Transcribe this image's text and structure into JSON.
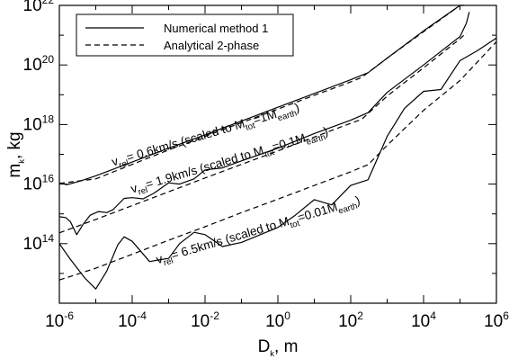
{
  "chart_data": {
    "type": "line",
    "xlabel": {
      "main": "D",
      "sub": "k",
      "rest": ", m"
    },
    "ylabel": {
      "main": "m",
      "sub": "k",
      "rest": ", kg"
    },
    "x_scale": "log",
    "y_scale": "log",
    "xlim": [
      1e-06,
      1000000.0
    ],
    "ylim": [
      1000000000000.0,
      1e+22
    ],
    "x_ticks": [
      {
        "base": "10",
        "exp": "-6",
        "value": 1e-06
      },
      {
        "base": "10",
        "exp": "-4",
        "value": 0.0001
      },
      {
        "base": "10",
        "exp": "-2",
        "value": 0.01
      },
      {
        "base": "10",
        "exp": "0",
        "value": 1
      },
      {
        "base": "10",
        "exp": "2",
        "value": 100.0
      },
      {
        "base": "10",
        "exp": "4",
        "value": 10000.0
      },
      {
        "base": "10",
        "exp": "6",
        "value": 1000000.0
      }
    ],
    "y_ticks": [
      {
        "base": "10",
        "exp": "14",
        "value": 100000000000000.0
      },
      {
        "base": "10",
        "exp": "16",
        "value": 1e+16
      },
      {
        "base": "10",
        "exp": "18",
        "value": 1e+18
      },
      {
        "base": "10",
        "exp": "20",
        "value": 1e+20
      },
      {
        "base": "10",
        "exp": "22",
        "value": 1e+22
      }
    ],
    "legend": {
      "placement": "top-left",
      "entries": [
        {
          "label": "Numerical method 1",
          "style": "solid"
        },
        {
          "label": "Analytical 2-phase",
          "style": "dashed"
        }
      ]
    },
    "series": [
      {
        "case": "0.6km/s",
        "style": "solid",
        "points": [
          [
            1e-06,
            1.1e+16
          ],
          [
            1.6e-06,
            9500000000000000.0
          ],
          [
            2.5e-06,
            1.1e+16
          ],
          [
            4e-06,
            1.3e+16
          ],
          [
            1e-05,
            1.9e+16
          ],
          [
            0.0001,
            5.5e+16
          ],
          [
            0.001,
            1.6e+17
          ],
          [
            0.01,
            4.5e+17
          ],
          [
            0.1,
            1.3e+18
          ],
          [
            1,
            3.8e+18
          ],
          [
            10,
            1.1e+19
          ],
          [
            100,
            3.2e+19
          ],
          [
            300,
            5.5e+19
          ],
          [
            1000,
            1.7e+20
          ],
          [
            10000.0,
            1.4e+21
          ],
          [
            100000.0,
            1.2e+22
          ],
          [
            130000.0,
            2.5e+22
          ]
        ]
      },
      {
        "case": "0.6km/s",
        "style": "dashed",
        "points": [
          [
            1e-06,
            1.05e+16
          ],
          [
            1e-05,
            1.5e+16
          ],
          [
            0.0001,
            4.6e+16
          ],
          [
            0.001,
            1.4e+17
          ],
          [
            0.01,
            4e+17
          ],
          [
            0.1,
            1.15e+18
          ],
          [
            1,
            3.3e+18
          ],
          [
            10,
            9.5e+18
          ],
          [
            100,
            2.7e+19
          ],
          [
            200,
            3.8e+19
          ],
          [
            1000.0,
            1.7e+20
          ],
          [
            10000.0,
            1.3e+21
          ],
          [
            100000.0,
            1.1e+22
          ]
        ]
      },
      {
        "case": "1.9km/s",
        "style": "solid",
        "points": [
          [
            1e-06,
            800000000000000.0
          ],
          [
            1.5e-06,
            750000000000000.0
          ],
          [
            2e-06,
            550000000000000.0
          ],
          [
            3e-06,
            200000000000000.0
          ],
          [
            4.5e-06,
            450000000000000.0
          ],
          [
            7e-06,
            900000000000000.0
          ],
          [
            1.2e-05,
            1200000000000000.0
          ],
          [
            2e-05,
            1100000000000000.0
          ],
          [
            3e-05,
            1400000000000000.0
          ],
          [
            6e-05,
            3300000000000000.0
          ],
          [
            0.0001,
            3500000000000000.0
          ],
          [
            0.0002,
            3200000000000000.0
          ],
          [
            0.0004,
            5000000000000000.0
          ],
          [
            0.001,
            1.1e+16
          ],
          [
            0.002,
            1e+16
          ],
          [
            0.005,
            1.5e+16
          ],
          [
            0.01,
            3e+16
          ],
          [
            0.03,
            3.5e+16
          ],
          [
            0.1,
            6e+16
          ],
          [
            1,
            1.6e+17
          ],
          [
            10,
            5e+17
          ],
          [
            100,
            1.4e+18
          ],
          [
            300,
            2.5e+18
          ],
          [
            1000,
            1.2e+19
          ],
          [
            10000.0,
            1e+20
          ],
          [
            100000.0,
            9e+20
          ],
          [
            150000.0,
            2.5e+21
          ],
          [
            180000.0,
            6e+21
          ]
        ]
      },
      {
        "case": "1.9km/s",
        "style": "dashed",
        "points": [
          [
            1e-06,
            230000000000000.0
          ],
          [
            1e-05,
            650000000000000.0
          ],
          [
            0.0001,
            1900000000000000.0
          ],
          [
            0.001,
            5500000000000000.0
          ],
          [
            0.01,
            1.6e+16
          ],
          [
            0.1,
            4.6e+16
          ],
          [
            1,
            1.3e+17
          ],
          [
            10,
            3.8e+17
          ],
          [
            100,
            1.1e+18
          ],
          [
            200,
            1.5e+18
          ],
          [
            1000.0,
            9e+18
          ],
          [
            10000.0,
            8e+19
          ],
          [
            100000.0,
            7.5e+20
          ],
          [
            150000.0,
            1.2e+21
          ]
        ]
      },
      {
        "case": "6.5km/s",
        "style": "solid",
        "points": [
          [
            1e-06,
            100000000000000.0
          ],
          [
            2e-06,
            30000000000000.0
          ],
          [
            5e-06,
            7000000000000.0
          ],
          [
            1e-05,
            3000000000000.0
          ],
          [
            2e-05,
            12000000000000.0
          ],
          [
            4e-05,
            90000000000000.0
          ],
          [
            6e-05,
            170000000000000.0
          ],
          [
            0.0001,
            120000000000000.0
          ],
          [
            0.0003,
            25000000000000.0
          ],
          [
            0.0007,
            30000000000000.0
          ],
          [
            0.001,
            32000000000000.0
          ],
          [
            0.002,
            100000000000000.0
          ],
          [
            0.005,
            240000000000000.0
          ],
          [
            0.01,
            200000000000000.0
          ],
          [
            0.03,
            80000000000000.0
          ],
          [
            0.1,
            110000000000000.0
          ],
          [
            1,
            350000000000000.0
          ],
          [
            3,
            900000000000000.0
          ],
          [
            10,
            3000000000000000.0
          ],
          [
            30,
            2000000000000000.0
          ],
          [
            100,
            9000000000000000.0
          ],
          [
            300,
            1.4e+16
          ],
          [
            1000,
            4e+17
          ],
          [
            3000,
            3.5e+18
          ],
          [
            10000.0,
            1.3e+19
          ],
          [
            30000.0,
            1.5e+19
          ],
          [
            100000.0,
            1.4e+20
          ],
          [
            300000.0,
            3e+20
          ],
          [
            1000000.0,
            8e+20
          ]
        ]
      },
      {
        "case": "6.5km/s",
        "style": "dashed",
        "points": [
          [
            1e-06,
            6000000000000.0
          ],
          [
            1e-05,
            15000000000000.0
          ],
          [
            0.0001,
            44000000000000.0
          ],
          [
            0.001,
            130000000000000.0
          ],
          [
            0.01,
            370000000000000.0
          ],
          [
            0.1,
            1100000000000000.0
          ],
          [
            1,
            3100000000000000.0
          ],
          [
            10,
            9000000000000000.0
          ],
          [
            100,
            2.6e+16
          ],
          [
            300,
            4.5e+16
          ],
          [
            1000.0,
            2e+17
          ],
          [
            10000.0,
            3e+18
          ],
          [
            100000.0,
            3e+19
          ],
          [
            1000000.0,
            6e+20
          ]
        ]
      }
    ],
    "annotations": [
      {
        "pre": "v",
        "sub1": "rel",
        "mid": "= 0.6km/s (scaled to M",
        "sub2": "tot",
        "post": "=1M",
        "sub3": "earth",
        "end": ")",
        "at": [
          3e-05,
          4e+16
        ],
        "angle": -16.5
      },
      {
        "pre": "v",
        "sub1": "rel",
        "mid": "= 1.9km/s (scaled to M",
        "sub2": "tot",
        "post": "=0.1M",
        "sub3": "earth",
        "end": ")",
        "at": [
          0.0001,
          5000000000000000.0
        ],
        "angle": -16.5
      },
      {
        "pre": "v",
        "sub1": "rel",
        "mid": "= 6.5km/s (scaled to M",
        "sub2": "tot",
        "post": "=0.01M",
        "sub3": "earth",
        "end": ")",
        "at": [
          0.0005,
          21000000000000.0
        ],
        "angle": -16.5
      }
    ]
  }
}
